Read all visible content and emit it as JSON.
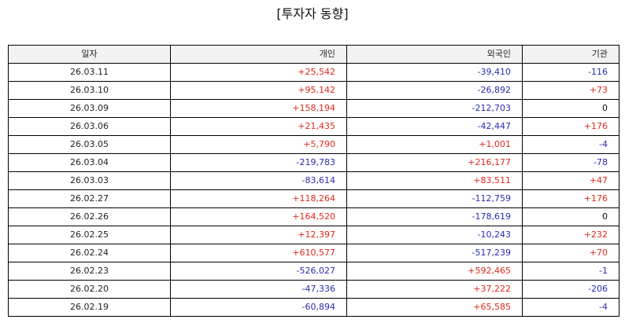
{
  "title": "[투자자 동향]",
  "headers": {
    "date": "일자",
    "individual": "개인",
    "foreign": "외국인",
    "institution": "기관"
  },
  "colors": {
    "positive": "#e0281c",
    "negative": "#2a2ab0",
    "zero": "#111111"
  },
  "rows": [
    {
      "date": "26.03.11",
      "individual": "+25,542",
      "foreign": "-39,410",
      "institution": "-116"
    },
    {
      "date": "26.03.10",
      "individual": "+95,142",
      "foreign": "-26,892",
      "institution": "+73"
    },
    {
      "date": "26.03.09",
      "individual": "+158,194",
      "foreign": "-212,703",
      "institution": "0"
    },
    {
      "date": "26.03.06",
      "individual": "+21,435",
      "foreign": "-42,447",
      "institution": "+176"
    },
    {
      "date": "26.03.05",
      "individual": "+5,790",
      "foreign": "+1,001",
      "institution": "-4"
    },
    {
      "date": "26.03.04",
      "individual": "-219,783",
      "foreign": "+216,177",
      "institution": "-78"
    },
    {
      "date": "26.03.03",
      "individual": "-83,614",
      "foreign": "+83,511",
      "institution": "+47"
    },
    {
      "date": "26.02.27",
      "individual": "+118,264",
      "foreign": "-112,759",
      "institution": "+176"
    },
    {
      "date": "26.02.26",
      "individual": "+164,520",
      "foreign": "-178,619",
      "institution": "0"
    },
    {
      "date": "26.02.25",
      "individual": "+12,397",
      "foreign": "-10,243",
      "institution": "+232"
    },
    {
      "date": "26.02.24",
      "individual": "+610,577",
      "foreign": "-517,239",
      "institution": "+70"
    },
    {
      "date": "26.02.23",
      "individual": "-526,027",
      "foreign": "+592,465",
      "institution": "-1"
    },
    {
      "date": "26.02.20",
      "individual": "-47,336",
      "foreign": "+37,222",
      "institution": "-206"
    },
    {
      "date": "26.02.19",
      "individual": "-60,894",
      "foreign": "+65,585",
      "institution": "-4"
    }
  ]
}
